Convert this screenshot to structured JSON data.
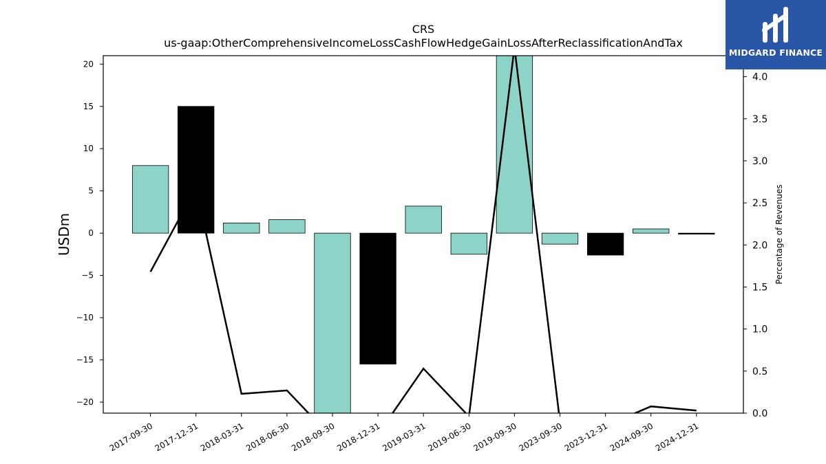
{
  "chart_data": {
    "type": "bar",
    "title": "CRS",
    "subtitle": "us-gaap:OtherComprehensiveIncomeLossCashFlowHedgeGainLossAfterReclassificationAndTax",
    "ylabel": "USDm",
    "y2label": "Percentage of Revenues",
    "categories": [
      "2017-09-30",
      "2017-12-31",
      "2018-03-31",
      "2018-06-30",
      "2018-09-30",
      "2018-12-31",
      "2019-03-31",
      "2019-06-30",
      "2019-09-30",
      "2023-09-30",
      "2023-12-31",
      "2024-09-30",
      "2024-12-31"
    ],
    "values": [
      8.0,
      15.0,
      1.2,
      1.6,
      -22.0,
      -15.5,
      3.2,
      -2.5,
      22.0,
      -1.3,
      -2.6,
      0.5,
      0.0
    ],
    "bar_colors": [
      "#8dd3c7",
      "#000000",
      "#8dd3c7",
      "#8dd3c7",
      "#8dd3c7",
      "#000000",
      "#8dd3c7",
      "#8dd3c7",
      "#8dd3c7",
      "#8dd3c7",
      "#000000",
      "#8dd3c7",
      "#000000"
    ],
    "pct_of_revenues": [
      1.68,
      2.68,
      0.23,
      0.27,
      -0.3,
      -0.25,
      0.53,
      -0.04,
      4.35,
      -0.1,
      -0.15,
      0.08,
      0.03
    ],
    "ylim": [
      -21.3,
      21.0
    ],
    "y2lim": [
      0.0,
      4.25
    ],
    "yticks": [
      -20,
      -15,
      -10,
      -5,
      0,
      5,
      10,
      15,
      20
    ],
    "y2ticks": [
      0.0,
      0.5,
      1.0,
      1.5,
      2.0,
      2.5,
      3.0,
      3.5,
      4.0
    ],
    "grid": false
  },
  "logo": {
    "text": "MIDGARD FINANCE",
    "color": "#2a56a8"
  }
}
